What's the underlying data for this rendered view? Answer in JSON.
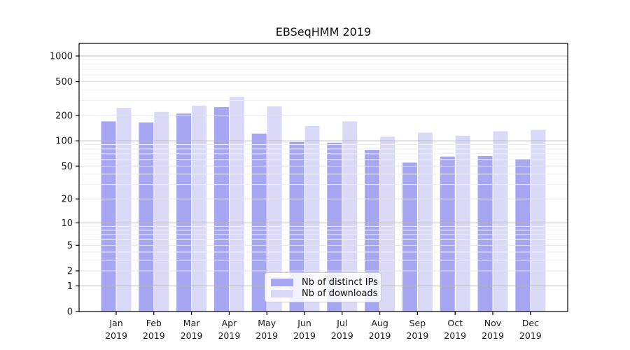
{
  "figure": {
    "title": "EBSeqHMM 2019"
  },
  "colors": {
    "distinct_ips_bar": "#a6a6f2",
    "downloads_bar": "#dadaf8",
    "axis": "#000000",
    "text": "#1a1a1a",
    "grid_major": "#b4b4b4",
    "grid_mid": "#e3e3e3",
    "grid_minor": "#efefef",
    "legend_border": "#cccccc"
  },
  "chart_data": {
    "type": "bar",
    "title": "EBSeqHMM 2019",
    "categories": [
      "Jan",
      "Feb",
      "Mar",
      "Apr",
      "May",
      "Jun",
      "Jul",
      "Aug",
      "Sep",
      "Oct",
      "Nov",
      "Dec"
    ],
    "x_tick_year": "2019",
    "series": [
      {
        "name": "Nb of distinct IPs",
        "color": "#a6a6f2",
        "values": [
          170,
          165,
          210,
          250,
          122,
          97,
          95,
          78,
          55,
          65,
          66,
          61
        ]
      },
      {
        "name": "Nb of downloads",
        "color": "#dadaf8",
        "values": [
          245,
          220,
          260,
          330,
          255,
          150,
          170,
          112,
          125,
          115,
          130,
          135
        ]
      }
    ],
    "y_axis": {
      "scale": "log1p",
      "ticks": [
        0,
        1,
        2,
        5,
        10,
        20,
        50,
        100,
        200,
        500,
        1000
      ],
      "ylim": [
        0,
        1400
      ]
    },
    "xlabel": "",
    "ylabel": "",
    "grid": true,
    "legend_position": "lower center"
  }
}
